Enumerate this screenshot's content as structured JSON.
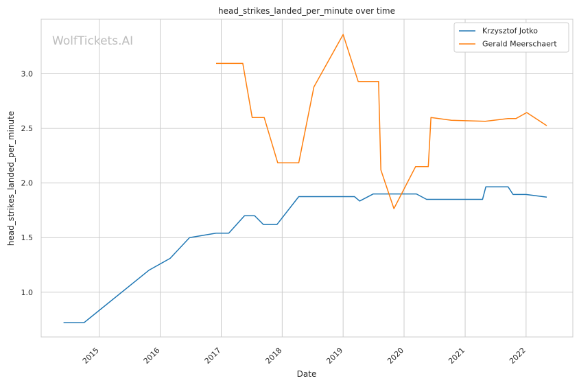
{
  "watermark": "WolfTickets.AI",
  "chart_data": {
    "type": "line",
    "title": "head_strikes_landed_per_minute over time",
    "xlabel": "Date",
    "ylabel": "head_strikes_landed_per_minute",
    "xlim": [
      "2014-01-18",
      "2022-10-08"
    ],
    "ylim": [
      0.59,
      3.5
    ],
    "x_ticks": [
      "2015",
      "2016",
      "2017",
      "2018",
      "2019",
      "2020",
      "2021",
      "2022"
    ],
    "y_ticks": [
      "1.0",
      "1.5",
      "2.0",
      "2.5",
      "3.0"
    ],
    "grid": true,
    "legend_position": "top-right",
    "series": [
      {
        "name": "Krzysztof Jotko",
        "color": "#1f77b4",
        "points": [
          [
            "2014-06-01",
            0.72
          ],
          [
            "2014-10-01",
            0.72
          ],
          [
            "2015-10-25",
            1.2
          ],
          [
            "2016-03-01",
            1.31
          ],
          [
            "2016-06-25",
            1.5
          ],
          [
            "2016-12-01",
            1.54
          ],
          [
            "2017-02-15",
            1.54
          ],
          [
            "2017-05-20",
            1.7
          ],
          [
            "2017-07-20",
            1.7
          ],
          [
            "2017-09-10",
            1.62
          ],
          [
            "2017-12-01",
            1.62
          ],
          [
            "2018-04-10",
            1.875
          ],
          [
            "2019-03-10",
            1.875
          ],
          [
            "2019-04-10",
            1.835
          ],
          [
            "2019-07-01",
            1.9
          ],
          [
            "2020-03-15",
            1.9
          ],
          [
            "2020-05-15",
            1.85
          ],
          [
            "2021-04-15",
            1.85
          ],
          [
            "2021-05-05",
            1.965
          ],
          [
            "2021-09-15",
            1.965
          ],
          [
            "2021-10-15",
            1.895
          ],
          [
            "2022-01-01",
            1.895
          ],
          [
            "2022-05-05",
            1.87
          ]
        ]
      },
      {
        "name": "Gerald Meerschaert",
        "color": "#ff7f0e",
        "points": [
          [
            "2016-12-01",
            3.095
          ],
          [
            "2017-05-10",
            3.095
          ],
          [
            "2017-07-05",
            2.6
          ],
          [
            "2017-09-15",
            2.6
          ],
          [
            "2017-12-05",
            2.185
          ],
          [
            "2018-04-10",
            2.185
          ],
          [
            "2018-07-10",
            2.88
          ],
          [
            "2019-01-01",
            3.36
          ],
          [
            "2019-04-01",
            2.93
          ],
          [
            "2019-08-01",
            2.93
          ],
          [
            "2019-08-15",
            2.12
          ],
          [
            "2019-11-01",
            1.765
          ],
          [
            "2020-03-10",
            2.15
          ],
          [
            "2020-05-25",
            2.15
          ],
          [
            "2020-06-10",
            2.6
          ],
          [
            "2020-10-10",
            2.575
          ],
          [
            "2021-05-01",
            2.565
          ],
          [
            "2021-09-15",
            2.59
          ],
          [
            "2021-11-01",
            2.59
          ],
          [
            "2022-01-05",
            2.645
          ],
          [
            "2022-05-05",
            2.525
          ]
        ]
      }
    ]
  }
}
